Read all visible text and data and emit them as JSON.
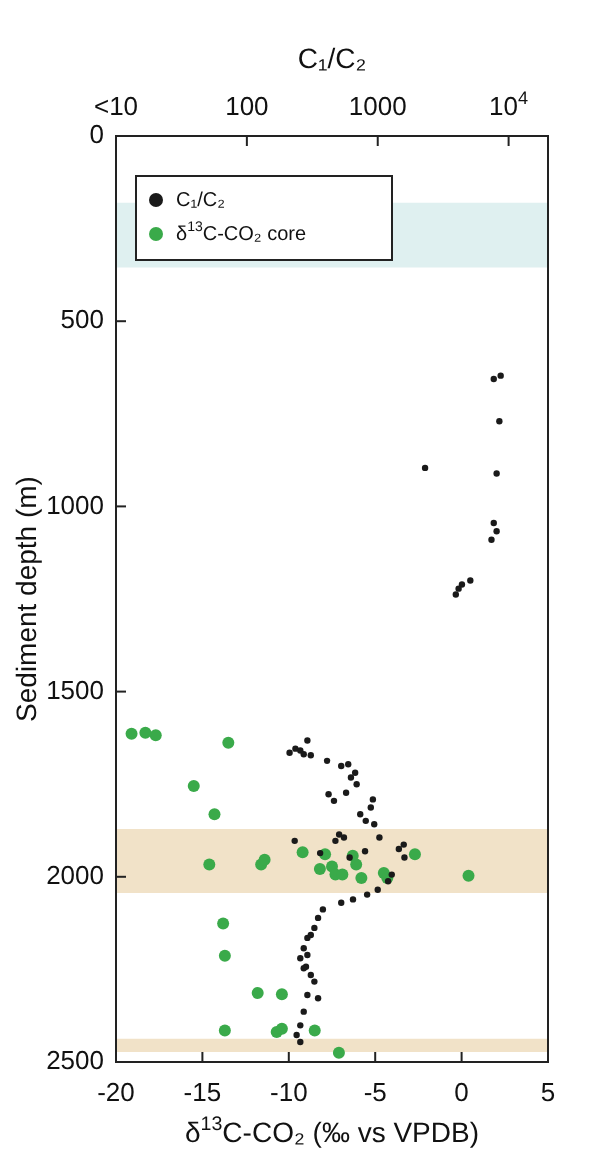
{
  "chart_data": {
    "type": "scatter",
    "xlabel": "δ$^{13}$C-CO₂ (‰ vs VPDB)",
    "x2label": "C₁/C₂",
    "ylabel": "Sediment depth (m)",
    "xlim": [
      -20,
      5
    ],
    "xticks": [
      -20,
      -15,
      -10,
      -5,
      0,
      5
    ],
    "x2lim": [
      10,
      20000
    ],
    "x2ticks": [
      {
        "value": 10,
        "label": "<10"
      },
      100,
      1000,
      {
        "value": 10000,
        "label": "10$^{4}$"
      }
    ],
    "log": "x2",
    "ylim": [
      2500,
      0
    ],
    "yticks": [
      0,
      500,
      1000,
      1500,
      2000,
      2500
    ],
    "grid": false,
    "legend": "top left",
    "marker": "circle",
    "bands": [
      {
        "axis": "y",
        "from": 180,
        "to": 355,
        "color": "#dff0f0"
      },
      {
        "axis": "y",
        "from": 1871,
        "to": 2044,
        "color": "#f1e2c8"
      },
      {
        "axis": "y",
        "from": 2437,
        "to": 2473,
        "color": "#f1e2c8"
      }
    ],
    "series": [
      {
        "name": "C₁/C₂",
        "color": "#1a1a1a",
        "axis": "x2",
        "x": [
          7700,
          8700,
          8500,
          2300,
          8100,
          7700,
          8100,
          7400,
          5100,
          4400,
          4150,
          3950,
          212,
          235,
          256,
          290,
          308,
          272,
          410,
          526,
          595,
          624,
          672,
          690,
          421,
          463,
          573,
          918,
          885,
          735,
          810,
          940,
          1030,
          507,
          552,
          475,
          232,
          363,
          610,
          800,
          1580,
          1450,
          1600,
          1280,
          1200,
          1000,
          830,
          647,
          526,
          381,
          350,
          328,
          290,
          272,
          256,
          283,
          308,
          308,
          290,
          272,
          328,
          290,
          350,
          272,
          256,
          240,
          256
        ],
        "values": [
          656,
          647,
          770,
          896,
          911,
          1045,
          1067,
          1090,
          1200,
          1211,
          1222,
          1238,
          1665,
          1654,
          1659,
          1632,
          1672,
          1669,
          1687,
          1701,
          1696,
          1732,
          1719,
          1750,
          1777,
          1795,
          1773,
          1791,
          1813,
          1831,
          1849,
          1858,
          1894,
          1886,
          1894,
          1903,
          1903,
          1936,
          1948,
          1931,
          1913,
          1925,
          1948,
          1994,
          2012,
          2035,
          2048,
          2061,
          2070,
          2088,
          2111,
          2138,
          2165,
          2193,
          2220,
          2243,
          2265,
          2157,
          2211,
          2247,
          2283,
          2319,
          2328,
          2364,
          2401,
          2427,
          2446
        ]
      },
      {
        "name": "δ$^{13}$C-CO₂ core",
        "color": "#3aaa4a",
        "x": [
          -19.1,
          -18.3,
          -17.7,
          -13.5,
          -15.5,
          -14.3,
          -14.6,
          -11.6,
          -11.4,
          -9.2,
          -7.9,
          -8.2,
          -7.5,
          -7.3,
          -6.9,
          -6.3,
          -6.1,
          -5.8,
          -4.5,
          -4.3,
          -2.7,
          0.4,
          -13.8,
          -13.7,
          -11.8,
          -10.4,
          -13.7,
          -10.7,
          -10.4,
          -8.5,
          -7.1
        ],
        "values": [
          1614,
          1611,
          1618,
          1638,
          1755,
          1831,
          1967,
          1967,
          1954,
          1934,
          1939,
          1979,
          1972,
          1994,
          1994,
          1943,
          1967,
          2003,
          1990,
          2003,
          1939,
          1997,
          2126,
          2213,
          2314,
          2317,
          2415,
          2419,
          2410,
          2415,
          2475
        ]
      }
    ]
  }
}
